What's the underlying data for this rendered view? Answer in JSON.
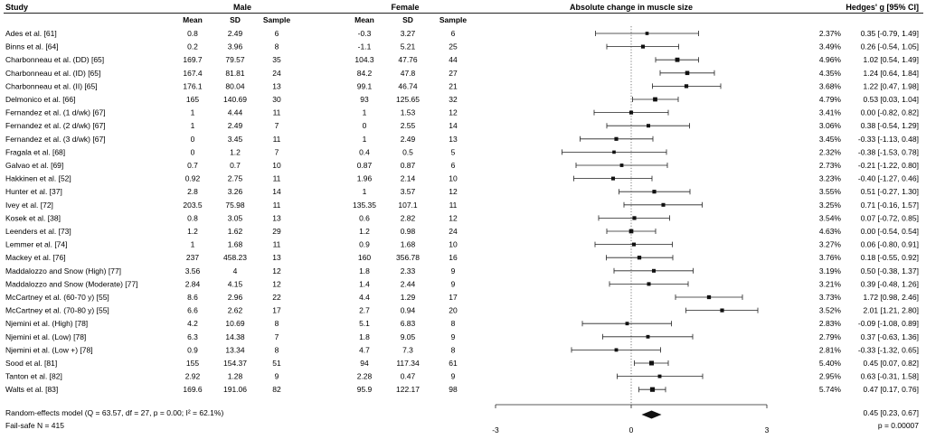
{
  "headers": {
    "study": "Study",
    "male": "Male",
    "female": "Female",
    "mean": "Mean",
    "sd": "SD",
    "sample": "Sample",
    "plot_title": "Absolute change in muscle size",
    "effect": "Hedges' g [95% CI]"
  },
  "chart_data": {
    "type": "forest",
    "xlim": [
      -3,
      3
    ],
    "xticks": [
      "-3",
      "0",
      "3"
    ],
    "reference_line": 0,
    "studies": [
      {
        "study": "Ades et al. [61]",
        "male_mean": "0.8",
        "male_sd": "2.49",
        "male_n": "6",
        "female_mean": "-0.3",
        "female_sd": "3.27",
        "female_n": "6",
        "weight": "2.37%",
        "g": 0.35,
        "lo": -0.79,
        "hi": 1.49,
        "ci_text": "0.35 [-0.79, 1.49]"
      },
      {
        "study": "Binns et al. [64]",
        "male_mean": "0.2",
        "male_sd": "3.96",
        "male_n": "8",
        "female_mean": "-1.1",
        "female_sd": "5.21",
        "female_n": "25",
        "weight": "3.49%",
        "g": 0.26,
        "lo": -0.54,
        "hi": 1.05,
        "ci_text": "0.26 [-0.54, 1.05]"
      },
      {
        "study": "Charbonneau et al. (DD) [65]",
        "male_mean": "169.7",
        "male_sd": "79.57",
        "male_n": "35",
        "female_mean": "104.3",
        "female_sd": "47.76",
        "female_n": "44",
        "weight": "4.96%",
        "g": 1.02,
        "lo": 0.54,
        "hi": 1.49,
        "ci_text": "1.02 [0.54, 1.49]"
      },
      {
        "study": "Charbonneau et al. (ID) [65]",
        "male_mean": "167.4",
        "male_sd": "81.81",
        "male_n": "24",
        "female_mean": "84.2",
        "female_sd": "47.8",
        "female_n": "27",
        "weight": "4.35%",
        "g": 1.24,
        "lo": 0.64,
        "hi": 1.84,
        "ci_text": "1.24 [0.64, 1.84]"
      },
      {
        "study": "Charbonneau et al. (II) [65]",
        "male_mean": "176.1",
        "male_sd": "80.04",
        "male_n": "13",
        "female_mean": "99.1",
        "female_sd": "46.74",
        "female_n": "21",
        "weight": "3.68%",
        "g": 1.22,
        "lo": 0.47,
        "hi": 1.98,
        "ci_text": "1.22 [0.47, 1.98]"
      },
      {
        "study": "Delmonico et al. [66]",
        "male_mean": "165",
        "male_sd": "140.69",
        "male_n": "30",
        "female_mean": "93",
        "female_sd": "125.65",
        "female_n": "32",
        "weight": "4.79%",
        "g": 0.53,
        "lo": 0.03,
        "hi": 1.04,
        "ci_text": "0.53 [0.03, 1.04]"
      },
      {
        "study": "Fernandez et al. (1 d/wk) [67]",
        "male_mean": "1",
        "male_sd": "4.44",
        "male_n": "11",
        "female_mean": "1",
        "female_sd": "1.53",
        "female_n": "12",
        "weight": "3.41%",
        "g": 0.0,
        "lo": -0.82,
        "hi": 0.82,
        "ci_text": "0.00 [-0.82, 0.82]"
      },
      {
        "study": "Fernandez et al. (2 d/wk) [67]",
        "male_mean": "1",
        "male_sd": "2.49",
        "male_n": "7",
        "female_mean": "0",
        "female_sd": "2.55",
        "female_n": "14",
        "weight": "3.06%",
        "g": 0.38,
        "lo": -0.54,
        "hi": 1.29,
        "ci_text": "0.38 [-0.54, 1.29]"
      },
      {
        "study": "Fernandez et al. (3 d/wk) [67]",
        "male_mean": "0",
        "male_sd": "3.45",
        "male_n": "11",
        "female_mean": "1",
        "female_sd": "2.49",
        "female_n": "13",
        "weight": "3.45%",
        "g": -0.33,
        "lo": -1.13,
        "hi": 0.48,
        "ci_text": "-0.33 [-1.13, 0.48]"
      },
      {
        "study": "Fragala et al. [68]",
        "male_mean": "0",
        "male_sd": "1.2",
        "male_n": "7",
        "female_mean": "0.4",
        "female_sd": "0.5",
        "female_n": "5",
        "weight": "2.32%",
        "g": -0.38,
        "lo": -1.53,
        "hi": 0.78,
        "ci_text": "-0.38 [-1.53, 0.78]"
      },
      {
        "study": "Galvao et al. [69]",
        "male_mean": "0.7",
        "male_sd": "0.7",
        "male_n": "10",
        "female_mean": "0.87",
        "female_sd": "0.87",
        "female_n": "6",
        "weight": "2.73%",
        "g": -0.21,
        "lo": -1.22,
        "hi": 0.8,
        "ci_text": "-0.21 [-1.22, 0.80]"
      },
      {
        "study": "Hakkinen et al. [52]",
        "male_mean": "0.92",
        "male_sd": "2.75",
        "male_n": "11",
        "female_mean": "1.96",
        "female_sd": "2.14",
        "female_n": "10",
        "weight": "3.23%",
        "g": -0.4,
        "lo": -1.27,
        "hi": 0.46,
        "ci_text": "-0.40 [-1.27, 0.46]"
      },
      {
        "study": "Hunter et al. [37]",
        "male_mean": "2.8",
        "male_sd": "3.26",
        "male_n": "14",
        "female_mean": "1",
        "female_sd": "3.57",
        "female_n": "12",
        "weight": "3.55%",
        "g": 0.51,
        "lo": -0.27,
        "hi": 1.3,
        "ci_text": "0.51 [-0.27, 1.30]"
      },
      {
        "study": "Ivey et al. [72]",
        "male_mean": "203.5",
        "male_sd": "75.98",
        "male_n": "11",
        "female_mean": "135.35",
        "female_sd": "107.1",
        "female_n": "11",
        "weight": "3.25%",
        "g": 0.71,
        "lo": -0.16,
        "hi": 1.57,
        "ci_text": "0.71 [-0.16, 1.57]"
      },
      {
        "study": "Kosek et al. [38]",
        "male_mean": "0.8",
        "male_sd": "3.05",
        "male_n": "13",
        "female_mean": "0.6",
        "female_sd": "2.82",
        "female_n": "12",
        "weight": "3.54%",
        "g": 0.07,
        "lo": -0.72,
        "hi": 0.85,
        "ci_text": "0.07 [-0.72, 0.85]"
      },
      {
        "study": "Leenders et al. [73]",
        "male_mean": "1.2",
        "male_sd": "1.62",
        "male_n": "29",
        "female_mean": "1.2",
        "female_sd": "0.98",
        "female_n": "24",
        "weight": "4.63%",
        "g": 0.0,
        "lo": -0.54,
        "hi": 0.54,
        "ci_text": "0.00 [-0.54, 0.54]"
      },
      {
        "study": "Lemmer et al. [74]",
        "male_mean": "1",
        "male_sd": "1.68",
        "male_n": "11",
        "female_mean": "0.9",
        "female_sd": "1.68",
        "female_n": "10",
        "weight": "3.27%",
        "g": 0.06,
        "lo": -0.8,
        "hi": 0.91,
        "ci_text": "0.06 [-0.80, 0.91]"
      },
      {
        "study": "Mackey et al. [76]",
        "male_mean": "237",
        "male_sd": "458.23",
        "male_n": "13",
        "female_mean": "160",
        "female_sd": "356.78",
        "female_n": "16",
        "weight": "3.76%",
        "g": 0.18,
        "lo": -0.55,
        "hi": 0.92,
        "ci_text": "0.18 [-0.55, 0.92]"
      },
      {
        "study": "Maddalozzo and Snow (High) [77]",
        "male_mean": "3.56",
        "male_sd": "4",
        "male_n": "12",
        "female_mean": "1.8",
        "female_sd": "2.33",
        "female_n": "9",
        "weight": "3.19%",
        "g": 0.5,
        "lo": -0.38,
        "hi": 1.37,
        "ci_text": "0.50 [-0.38, 1.37]"
      },
      {
        "study": "Maddalozzo and Snow (Moderate) [77]",
        "male_mean": "2.84",
        "male_sd": "4.15",
        "male_n": "12",
        "female_mean": "1.4",
        "female_sd": "2.44",
        "female_n": "9",
        "weight": "3.21%",
        "g": 0.39,
        "lo": -0.48,
        "hi": 1.26,
        "ci_text": "0.39 [-0.48, 1.26]"
      },
      {
        "study": "McCartney et al. (60-70 y) [55]",
        "male_mean": "8.6",
        "male_sd": "2.96",
        "male_n": "22",
        "female_mean": "4.4",
        "female_sd": "1.29",
        "female_n": "17",
        "weight": "3.73%",
        "g": 1.72,
        "lo": 0.98,
        "hi": 2.46,
        "ci_text": "1.72 [0.98, 2.46]"
      },
      {
        "study": "McCartney et al. (70-80 y) [55]",
        "male_mean": "6.6",
        "male_sd": "2.62",
        "male_n": "17",
        "female_mean": "2.7",
        "female_sd": "0.94",
        "female_n": "20",
        "weight": "3.52%",
        "g": 2.01,
        "lo": 1.21,
        "hi": 2.8,
        "ci_text": "2.01 [1.21, 2.80]"
      },
      {
        "study": "Njemini et al. (High) [78]",
        "male_mean": "4.2",
        "male_sd": "10.69",
        "male_n": "8",
        "female_mean": "5.1",
        "female_sd": "6.83",
        "female_n": "8",
        "weight": "2.83%",
        "g": -0.09,
        "lo": -1.08,
        "hi": 0.89,
        "ci_text": "-0.09 [-1.08, 0.89]"
      },
      {
        "study": "Njemini et al. (Low) [78]",
        "male_mean": "6.3",
        "male_sd": "14.38",
        "male_n": "7",
        "female_mean": "1.8",
        "female_sd": "9.05",
        "female_n": "9",
        "weight": "2.79%",
        "g": 0.37,
        "lo": -0.63,
        "hi": 1.36,
        "ci_text": "0.37 [-0.63, 1.36]"
      },
      {
        "study": "Njemini et al. (Low +) [78]",
        "male_mean": "0.9",
        "male_sd": "13.34",
        "male_n": "8",
        "female_mean": "4.7",
        "female_sd": "7.3",
        "female_n": "8",
        "weight": "2.81%",
        "g": -0.33,
        "lo": -1.32,
        "hi": 0.65,
        "ci_text": "-0.33 [-1.32, 0.65]"
      },
      {
        "study": "Sood et al. [81]",
        "male_mean": "155",
        "male_sd": "154.37",
        "male_n": "51",
        "female_mean": "94",
        "female_sd": "117.34",
        "female_n": "61",
        "weight": "5.40%",
        "g": 0.45,
        "lo": 0.07,
        "hi": 0.82,
        "ci_text": "0.45 [0.07, 0.82]"
      },
      {
        "study": "Tanton et al. [82]",
        "male_mean": "2.92",
        "male_sd": "1.28",
        "male_n": "9",
        "female_mean": "2.28",
        "female_sd": "0.47",
        "female_n": "9",
        "weight": "2.95%",
        "g": 0.63,
        "lo": -0.31,
        "hi": 1.58,
        "ci_text": "0.63 [-0.31, 1.58]"
      },
      {
        "study": "Walts et al. [83]",
        "male_mean": "169.6",
        "male_sd": "191.06",
        "male_n": "82",
        "female_mean": "95.9",
        "female_sd": "122.17",
        "female_n": "98",
        "weight": "5.74%",
        "g": 0.47,
        "lo": 0.17,
        "hi": 0.76,
        "ci_text": "0.47 [0.17, 0.76]"
      }
    ],
    "summary": {
      "label": "Random-effects model (Q = 63.57, df = 27, p = 0.00; I² = 62.1%)",
      "g": 0.45,
      "lo": 0.23,
      "hi": 0.67,
      "ci_text": "0.45 [0.23, 0.67]"
    },
    "failsafe": "Fail-safe N = 415",
    "p_value": "p = 0.00007"
  }
}
